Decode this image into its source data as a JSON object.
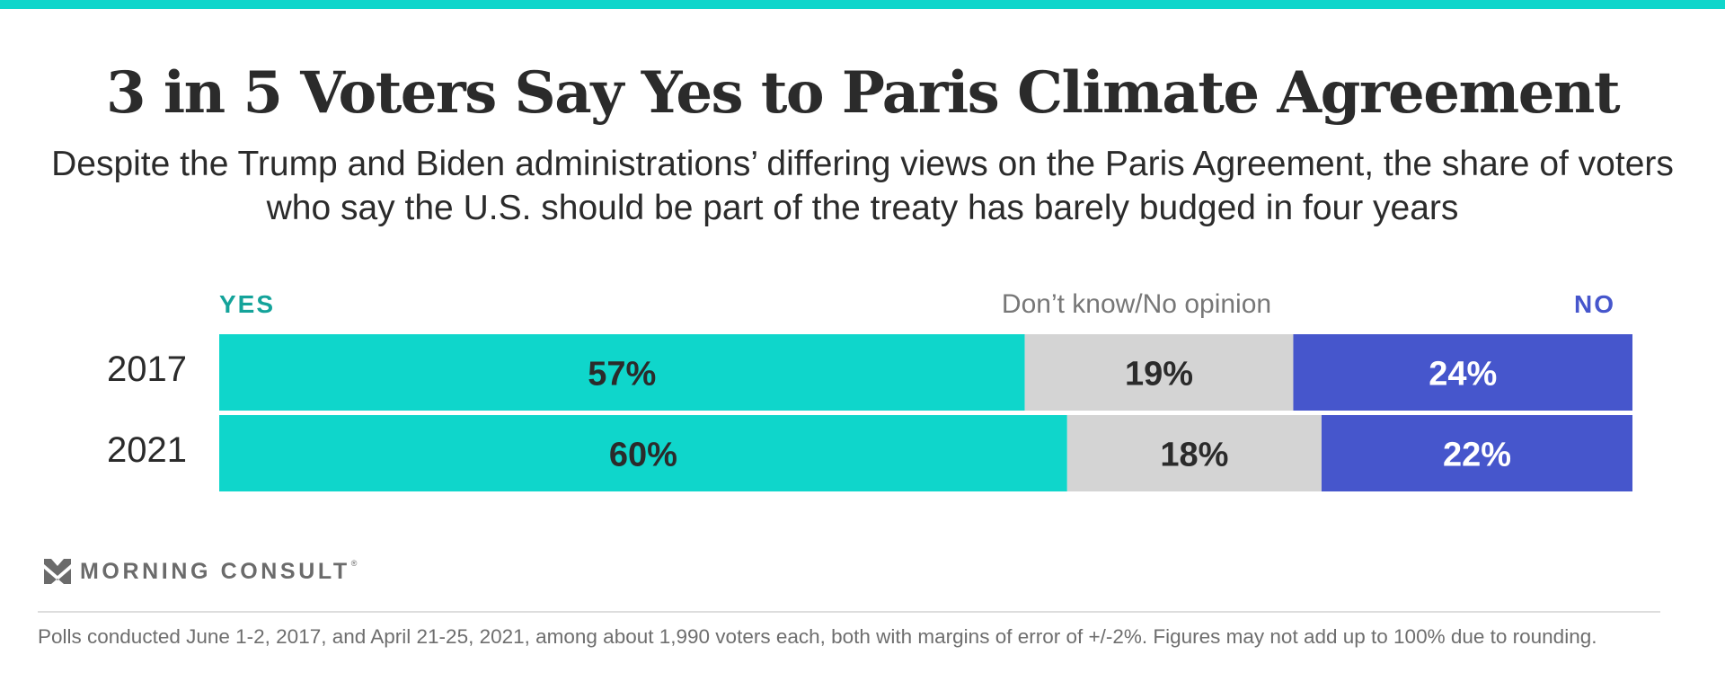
{
  "header": {
    "title": "3 in 5 Voters Say Yes to Paris Climate Agreement",
    "subtitle": "Despite the Trump and Biden administrations’ differing views on the Paris Agreement, the share of voters who say the U.S. should be part of the treaty has barely budged in four years"
  },
  "colors": {
    "accent_bar": "#0fd6cb",
    "yes": "#0fd6cb",
    "yes_label": "#14a39a",
    "dont_know": "#d4d4d4",
    "dont_know_label": "#777777",
    "no": "#4656cc",
    "no_label": "#4656cc"
  },
  "chart_data": {
    "type": "bar",
    "orientation": "horizontal-stacked-100",
    "title": "3 in 5 Voters Say Yes to Paris Climate Agreement",
    "categories": [
      "2017",
      "2021"
    ],
    "series": [
      {
        "name": "YES",
        "values": [
          57,
          60
        ],
        "labels": [
          "57%",
          "60%"
        ],
        "color": "#0fd6cb",
        "label_color": "#2b2b2b"
      },
      {
        "name": "Don’t know/No opinion",
        "values": [
          19,
          18
        ],
        "labels": [
          "19%",
          "18%"
        ],
        "color": "#d4d4d4",
        "label_color": "#2b2b2b"
      },
      {
        "name": "NO",
        "values": [
          24,
          22
        ],
        "labels": [
          "24%",
          "22%"
        ],
        "color": "#4656cc",
        "label_color": "#ffffff"
      }
    ],
    "xlim": [
      0,
      100
    ],
    "grid": false,
    "legend": "top, inline above bars",
    "xlabel": "",
    "ylabel": ""
  },
  "legend": {
    "yes": "YES",
    "dont_know": "Don’t know/No opinion",
    "no": "NO"
  },
  "branding": {
    "logo_text": "MORNING CONSULT",
    "registered_mark": "®",
    "logo_icon": "double-chevron-down-icon"
  },
  "footnote": "Polls conducted June 1-2, 2017, and April 21-25, 2021, among about 1,990 voters each, both with margins of error of +/-2%. Figures may not add up to 100% due to rounding."
}
